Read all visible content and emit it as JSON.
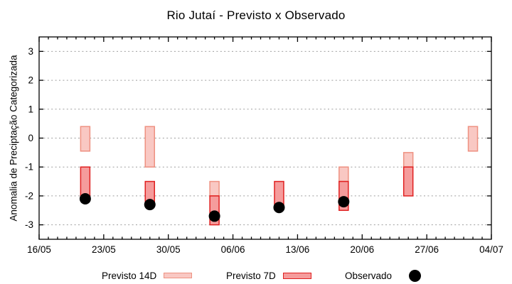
{
  "title": "Rio Jutaí - Previsto x Observado",
  "y_axis": {
    "label": "Anomalia de Preciptação Categorizada",
    "ticks": [
      3,
      2,
      1,
      0,
      -1,
      -2,
      -3
    ],
    "range": [
      -3.5,
      3.5
    ]
  },
  "x_axis": {
    "tick_labels": [
      "16/05",
      "23/05",
      "30/05",
      "06/06",
      "13/06",
      "20/06",
      "27/06",
      "04/07"
    ],
    "tick_days": [
      0,
      7,
      14,
      21,
      28,
      35,
      42,
      49
    ],
    "minor_tick_every_days": 1,
    "range_days": [
      0,
      49
    ]
  },
  "legend": {
    "items": [
      {
        "label": "Previsto 14D",
        "swatch": "light-box"
      },
      {
        "label": "Previsto 7D",
        "swatch": "dark-box"
      },
      {
        "label": "Observado",
        "swatch": "black-dot"
      }
    ]
  },
  "colors": {
    "previsto14_fill": "#f9c8c3",
    "previsto14_border": "#ee9181",
    "previsto7_fill": "#f59c9c",
    "previsto7_border": "#e02020",
    "observado": "#000000",
    "gridline": "#9e9e9e",
    "frame": "#000000"
  },
  "chart_data": {
    "type": "bar",
    "title": "Rio Jutaí - Previsto x Observado",
    "xlabel": "",
    "ylabel": "Anomalia de Preciptação Categorizada",
    "ylim": [
      -3.5,
      3.5
    ],
    "grid": "horizontal-dashed",
    "legend_position": "bottom",
    "series": [
      {
        "name": "Previsto 14D",
        "type": "range-bar",
        "points": [
          {
            "date": "21/05",
            "day": 5,
            "low": -0.45,
            "high": 0.4
          },
          {
            "date": "28/05",
            "day": 12,
            "low": -1.0,
            "high": 0.4
          },
          {
            "date": "04/06",
            "day": 19,
            "low": -2.0,
            "high": -1.5
          },
          {
            "date": "18/06",
            "day": 33,
            "low": -1.5,
            "high": -1.0
          },
          {
            "date": "25/06",
            "day": 40,
            "low": -1.0,
            "high": -0.5
          },
          {
            "date": "02/07",
            "day": 47,
            "low": -0.45,
            "high": 0.4
          }
        ]
      },
      {
        "name": "Previsto 7D",
        "type": "range-bar",
        "points": [
          {
            "date": "21/05",
            "day": 5,
            "low": -2.0,
            "high": -1.0
          },
          {
            "date": "28/05",
            "day": 12,
            "low": -2.3,
            "high": -1.5
          },
          {
            "date": "04/06",
            "day": 19,
            "low": -3.0,
            "high": -2.0
          },
          {
            "date": "11/06",
            "day": 26,
            "low": -2.3,
            "high": -1.5
          },
          {
            "date": "18/06",
            "day": 33,
            "low": -2.5,
            "high": -1.5
          },
          {
            "date": "25/06",
            "day": 40,
            "low": -2.0,
            "high": -1.0
          }
        ]
      },
      {
        "name": "Observado",
        "type": "scatter",
        "points": [
          {
            "date": "21/05",
            "day": 5,
            "y": -2.1
          },
          {
            "date": "28/05",
            "day": 12,
            "y": -2.3
          },
          {
            "date": "04/06",
            "day": 19,
            "y": -2.7
          },
          {
            "date": "11/06",
            "day": 26,
            "y": -2.4
          },
          {
            "date": "18/06",
            "day": 33,
            "y": -2.2
          }
        ]
      }
    ]
  }
}
